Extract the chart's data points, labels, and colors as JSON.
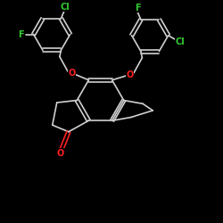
{
  "background": "#000000",
  "bond_color": "#d0d0d0",
  "atom_colors": {
    "O": "#ff2020",
    "F": "#33cc33",
    "Cl": "#33cc33",
    "C": "#d0d0d0"
  },
  "bond_width": 1.2,
  "figsize": [
    2.5,
    2.5
  ],
  "dpi": 100,
  "xlim": [
    0,
    10
  ],
  "ylim": [
    0,
    10
  ]
}
